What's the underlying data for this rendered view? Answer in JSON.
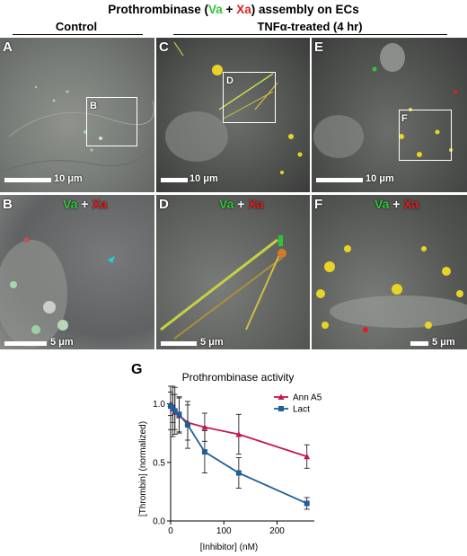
{
  "figure": {
    "title_parts": [
      "Prothrombinase (",
      "Va",
      " + ",
      "Xa",
      ") assembly on ECs"
    ],
    "group_control": "Control",
    "group_tnf": "TNFα-treated (4 hr)",
    "panels": {
      "A": {
        "label": "A",
        "scale": "10 μm",
        "inset": "B"
      },
      "B": {
        "label": "B",
        "scale": "5 μm",
        "overlay": [
          "Va",
          " + ",
          "Xa"
        ]
      },
      "C": {
        "label": "C",
        "scale": "10 μm",
        "inset": "D"
      },
      "D": {
        "label": "D",
        "scale": "5 μm",
        "overlay": [
          "Va",
          " + ",
          "Xa"
        ]
      },
      "E": {
        "label": "E",
        "scale": "10 μm",
        "inset": "F"
      },
      "F": {
        "label": "F",
        "scale": "5 μm",
        "overlay": [
          "Va",
          " + ",
          "Xa"
        ]
      }
    },
    "panel_g_label": "G",
    "colors": {
      "va": "#2fc53a",
      "xa": "#e02020",
      "annA5": "#c8174a",
      "lact": "#1f5f97"
    }
  },
  "chart_data": {
    "type": "line",
    "title": "Prothrombinase activity",
    "xlabel": "[Inhibitor] (nM)",
    "ylabel": "[Thrombin] (normalized)",
    "xlim": [
      0,
      270
    ],
    "ylim": [
      0,
      1.15
    ],
    "xticks": [
      "0",
      "100",
      "200"
    ],
    "yticks": [
      "0.0",
      "0.5",
      "1.0"
    ],
    "legend_position": "top-right",
    "series": [
      {
        "name": "Ann A5",
        "color": "#c8174a",
        "marker": "triangle",
        "x": [
          0,
          4,
          8,
          16,
          32,
          64,
          128,
          256
        ],
        "y": [
          1.0,
          0.96,
          0.93,
          0.9,
          0.84,
          0.8,
          0.74,
          0.55
        ],
        "err": [
          0.1,
          0.12,
          0.15,
          0.15,
          0.15,
          0.12,
          0.17,
          0.1
        ]
      },
      {
        "name": "Lact",
        "color": "#1f5f97",
        "marker": "square",
        "x": [
          0,
          4,
          8,
          16,
          32,
          64,
          128,
          256
        ],
        "y": [
          0.98,
          0.97,
          0.94,
          0.91,
          0.82,
          0.59,
          0.41,
          0.15
        ],
        "err": [
          0.2,
          0.25,
          0.2,
          0.15,
          0.2,
          0.18,
          0.13,
          0.05
        ]
      }
    ]
  }
}
